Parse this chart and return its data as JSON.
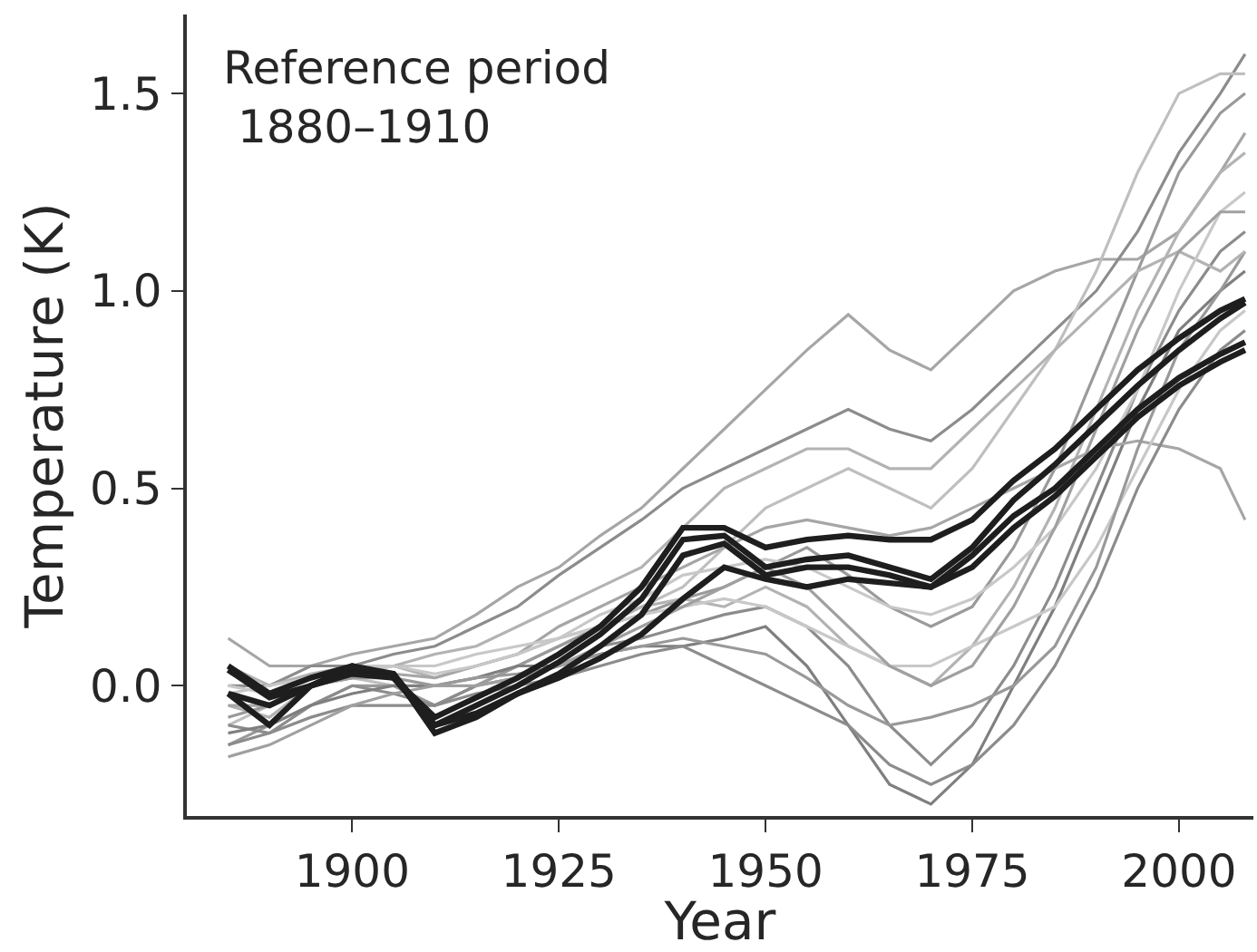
{
  "chart_data": {
    "type": "line",
    "xlabel": "Year",
    "ylabel": "Temperature (K)",
    "annotations": [
      "Reference period\n 1880–1910"
    ],
    "x": [
      1885,
      1890,
      1895,
      1900,
      1905,
      1910,
      1915,
      1920,
      1925,
      1930,
      1935,
      1940,
      1945,
      1950,
      1955,
      1960,
      1965,
      1970,
      1975,
      1980,
      1985,
      1990,
      1995,
      2000,
      2005,
      2008
    ],
    "xlim": [
      1880,
      2009
    ],
    "xticks": [
      1900,
      1925,
      1950,
      1975,
      2000
    ],
    "ylim": [
      -0.33,
      1.7
    ],
    "yticks": [
      {
        "value": 0,
        "label": "0.0"
      },
      0.5,
      {
        "value": 1,
        "label": "1.0"
      },
      1.5
    ],
    "marker": "none",
    "line_style": "solid",
    "series": [
      {
        "color": "#a6a6a6",
        "values": [
          0.12,
          0.05,
          0.05,
          0.08,
          0.1,
          0.12,
          0.18,
          0.25,
          0.3,
          0.38,
          0.45,
          0.55,
          0.65,
          0.75,
          0.85,
          0.94,
          0.85,
          0.8,
          0.9,
          1.0,
          1.05,
          1.08,
          1.08,
          1.15,
          1.3,
          1.4
        ]
      },
      {
        "color": "#8c8c8c",
        "values": [
          0.0,
          0.0,
          0.05,
          0.05,
          0.08,
          0.1,
          0.15,
          0.2,
          0.28,
          0.35,
          0.42,
          0.5,
          0.55,
          0.6,
          0.65,
          0.7,
          0.65,
          0.62,
          0.7,
          0.8,
          0.9,
          1.0,
          1.15,
          1.35,
          1.5,
          1.6
        ]
      },
      {
        "color": "#bfbfbf",
        "values": [
          -0.1,
          -0.05,
          0.0,
          0.02,
          0.0,
          -0.05,
          0.0,
          0.05,
          0.1,
          0.15,
          0.2,
          0.25,
          0.35,
          0.45,
          0.5,
          0.55,
          0.5,
          0.45,
          0.55,
          0.7,
          0.85,
          1.05,
          1.3,
          1.5,
          1.55,
          1.55
        ]
      },
      {
        "color": "#9a9a9a",
        "values": [
          -0.15,
          -0.1,
          -0.05,
          0.0,
          0.0,
          -0.05,
          0.0,
          0.05,
          0.1,
          0.15,
          0.18,
          0.22,
          0.25,
          0.3,
          0.35,
          0.28,
          0.2,
          0.15,
          0.2,
          0.35,
          0.55,
          0.8,
          1.05,
          1.3,
          1.45,
          1.5
        ]
      },
      {
        "color": "#b3b3b3",
        "values": [
          -0.05,
          -0.08,
          0.0,
          0.03,
          0.05,
          0.02,
          0.05,
          0.08,
          0.12,
          0.15,
          0.2,
          0.22,
          0.2,
          0.25,
          0.2,
          0.1,
          0.05,
          0.0,
          0.1,
          0.25,
          0.45,
          0.7,
          0.95,
          1.15,
          1.3,
          1.35
        ]
      },
      {
        "color": "#8c8c8c",
        "values": [
          -0.1,
          -0.12,
          -0.05,
          0.0,
          -0.02,
          -0.05,
          0.0,
          0.02,
          0.05,
          0.1,
          0.12,
          0.15,
          0.18,
          0.2,
          0.15,
          0.05,
          -0.1,
          -0.2,
          -0.1,
          0.05,
          0.25,
          0.5,
          0.75,
          0.95,
          1.1,
          1.15
        ]
      },
      {
        "color": "#7f7f7f",
        "values": [
          -0.12,
          -0.1,
          -0.05,
          -0.02,
          0.0,
          0.0,
          0.02,
          0.05,
          0.05,
          0.08,
          0.1,
          0.1,
          0.12,
          0.15,
          0.05,
          -0.1,
          -0.25,
          -0.3,
          -0.2,
          0.0,
          0.2,
          0.45,
          0.7,
          0.9,
          1.0,
          1.05
        ]
      },
      {
        "color": "#a6a6a6",
        "values": [
          -0.05,
          -0.05,
          0.0,
          0.02,
          0.03,
          0.02,
          0.05,
          0.08,
          0.15,
          0.2,
          0.25,
          0.3,
          0.35,
          0.4,
          0.42,
          0.4,
          0.38,
          0.4,
          0.45,
          0.5,
          0.55,
          0.6,
          0.62,
          0.6,
          0.55,
          0.42
        ]
      },
      {
        "color": "#c8c8c8",
        "values": [
          0.0,
          -0.02,
          0.0,
          0.03,
          0.05,
          0.05,
          0.08,
          0.1,
          0.12,
          0.15,
          0.18,
          0.2,
          0.22,
          0.2,
          0.15,
          0.1,
          0.05,
          0.05,
          0.1,
          0.15,
          0.2,
          0.35,
          0.55,
          0.75,
          0.9,
          0.95
        ]
      },
      {
        "color": "#999999",
        "values": [
          -0.08,
          -0.05,
          0.0,
          0.02,
          0.02,
          0.0,
          0.02,
          0.03,
          0.05,
          0.08,
          0.1,
          0.12,
          0.1,
          0.08,
          0.02,
          -0.05,
          -0.1,
          -0.08,
          -0.05,
          0.0,
          0.1,
          0.3,
          0.6,
          0.85,
          1.0,
          1.1
        ]
      },
      {
        "color": "#b3b3b3",
        "values": [
          0.05,
          0.0,
          0.03,
          0.05,
          0.05,
          0.08,
          0.1,
          0.15,
          0.2,
          0.25,
          0.3,
          0.4,
          0.5,
          0.55,
          0.6,
          0.6,
          0.55,
          0.55,
          0.65,
          0.75,
          0.85,
          0.95,
          1.05,
          1.1,
          1.05,
          1.1
        ]
      },
      {
        "color": "#8c8c8c",
        "values": [
          -0.15,
          -0.12,
          -0.08,
          -0.05,
          -0.05,
          -0.05,
          -0.02,
          0.0,
          0.02,
          0.05,
          0.08,
          0.1,
          0.05,
          0.0,
          -0.05,
          -0.1,
          -0.2,
          -0.25,
          -0.2,
          -0.1,
          0.05,
          0.25,
          0.5,
          0.7,
          0.85,
          0.9
        ]
      },
      {
        "color": "#c8c8c8",
        "values": [
          -0.02,
          0.0,
          0.02,
          0.05,
          0.05,
          0.03,
          0.05,
          0.08,
          0.12,
          0.18,
          0.22,
          0.28,
          0.3,
          0.32,
          0.3,
          0.25,
          0.2,
          0.18,
          0.22,
          0.3,
          0.4,
          0.55,
          0.75,
          1.0,
          1.2,
          1.25
        ]
      },
      {
        "color": "#a0a0a0",
        "values": [
          -0.18,
          -0.15,
          -0.1,
          -0.05,
          -0.02,
          0.0,
          0.0,
          0.02,
          0.05,
          0.1,
          0.15,
          0.2,
          0.25,
          0.3,
          0.25,
          0.15,
          0.05,
          0.0,
          0.05,
          0.2,
          0.4,
          0.65,
          0.9,
          1.1,
          1.2,
          1.2
        ]
      },
      {
        "color": "#1e1e1e",
        "values": [
          0.05,
          -0.02,
          0.02,
          0.05,
          0.02,
          -0.08,
          -0.03,
          0.02,
          0.08,
          0.15,
          0.25,
          0.4,
          0.4,
          0.35,
          0.37,
          0.38,
          0.37,
          0.37,
          0.42,
          0.52,
          0.6,
          0.7,
          0.8,
          0.88,
          0.95,
          0.98
        ]
      },
      {
        "color": "#1e1e1e",
        "values": [
          0.04,
          -0.03,
          0.0,
          0.04,
          0.03,
          -0.1,
          -0.05,
          0.0,
          0.06,
          0.13,
          0.22,
          0.37,
          0.38,
          0.3,
          0.32,
          0.33,
          0.3,
          0.27,
          0.35,
          0.47,
          0.56,
          0.66,
          0.76,
          0.85,
          0.93,
          0.97
        ]
      },
      {
        "color": "#1e1e1e",
        "values": [
          -0.02,
          -0.1,
          0.0,
          0.05,
          0.03,
          -0.12,
          -0.08,
          -0.02,
          0.03,
          0.1,
          0.18,
          0.33,
          0.36,
          0.28,
          0.3,
          0.3,
          0.28,
          0.25,
          0.33,
          0.43,
          0.5,
          0.6,
          0.7,
          0.78,
          0.84,
          0.87
        ]
      },
      {
        "color": "#1e1e1e",
        "values": [
          -0.02,
          -0.05,
          0.0,
          0.03,
          0.02,
          -0.1,
          -0.07,
          -0.02,
          0.02,
          0.07,
          0.13,
          0.22,
          0.3,
          0.27,
          0.25,
          0.27,
          0.26,
          0.25,
          0.3,
          0.4,
          0.48,
          0.58,
          0.68,
          0.76,
          0.82,
          0.85
        ]
      }
    ]
  }
}
